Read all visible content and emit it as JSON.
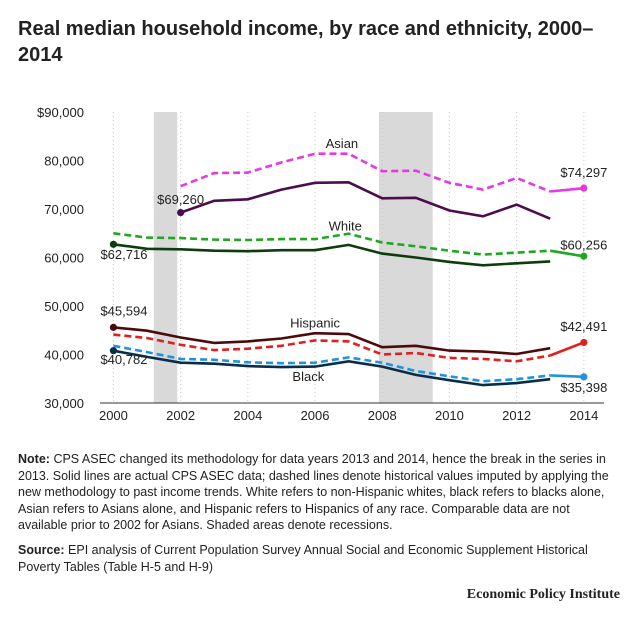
{
  "title": "Real median household income, by race and ethnicity, 2000–2014",
  "note": {
    "label": "Note:",
    "text": "CPS ASEC changed its methodology for data years 2013 and 2014, hence the break in the series in 2013. Solid lines are actual CPS ASEC data; dashed lines denote historical values imputed by applying the new methodology to past income trends. White refers to non-Hispanic whites, black refers to blacks alone, Asian refers to Asians alone, and Hispanic refers to Hispanics of any race. Comparable data are not available prior to 2002 for Asians. Shaded areas denote recessions."
  },
  "source": {
    "label": "Source:",
    "text": "EPI analysis of Current Population Survey Annual Social and Economic Supplement Historical Poverty Tables (Table H-5 and H-9)"
  },
  "footer": "Economic Policy Institute",
  "chart_data": {
    "type": "line",
    "title": "Real median household income, by race and ethnicity, 2000–2014",
    "xlabel": "",
    "ylabel": "",
    "xlim": [
      1999.6,
      2014.6
    ],
    "ylim": [
      30000,
      90000
    ],
    "x_ticks": [
      2000,
      2002,
      2004,
      2006,
      2008,
      2010,
      2012,
      2014
    ],
    "y_ticks": [
      30000,
      40000,
      50000,
      60000,
      70000,
      80000,
      90000
    ],
    "y_tick_labels": [
      "30,000",
      "40,000",
      "50,000",
      "60,000",
      "70,000",
      "80,000",
      "$90,000"
    ],
    "grid": "vertical dotted",
    "recessions": [
      [
        2001.2,
        2001.9
      ],
      [
        2007.9,
        2009.5
      ]
    ],
    "series": [
      {
        "name": "Asian",
        "color": "#4b0d4b",
        "solid": {
          "x": [
            2002,
            2003,
            2004,
            2005,
            2006,
            2007,
            2008,
            2009,
            2010,
            2011,
            2012,
            2013
          ],
          "y": [
            69260,
            71700,
            72000,
            74000,
            75400,
            75500,
            72200,
            72300,
            69700,
            68500,
            70900,
            68000
          ]
        },
        "dashed": {
          "x": [
            2002,
            2003,
            2004,
            2005,
            2006,
            2007,
            2008,
            2009,
            2010,
            2011,
            2012,
            2013,
            2014
          ],
          "y": [
            74700,
            77400,
            77500,
            79600,
            81400,
            81400,
            77800,
            77900,
            75400,
            74000,
            76400,
            73600,
            74297
          ]
        },
        "new_color": "#e638e6"
      },
      {
        "name": "White",
        "color": "#0c3d0c",
        "solid": {
          "x": [
            2000,
            2001,
            2002,
            2003,
            2004,
            2005,
            2006,
            2007,
            2008,
            2009,
            2010,
            2011,
            2012,
            2013
          ],
          "y": [
            62716,
            61800,
            61700,
            61400,
            61300,
            61500,
            61500,
            62600,
            60800,
            60000,
            59100,
            58400,
            58800,
            59200
          ]
        },
        "dashed": {
          "x": [
            2000,
            2001,
            2002,
            2003,
            2004,
            2005,
            2006,
            2007,
            2008,
            2009,
            2010,
            2011,
            2012,
            2013,
            2014
          ],
          "y": [
            65000,
            64100,
            64000,
            63700,
            63600,
            63800,
            63800,
            64900,
            63100,
            62300,
            61400,
            60600,
            61000,
            61400,
            60256
          ]
        },
        "new_color": "#21a621"
      },
      {
        "name": "Hispanic",
        "color": "#4d0a0a",
        "solid": {
          "x": [
            2000,
            2001,
            2002,
            2003,
            2004,
            2005,
            2006,
            2007,
            2008,
            2009,
            2010,
            2011,
            2012,
            2013
          ],
          "y": [
            45594,
            44900,
            43500,
            42400,
            42700,
            43300,
            44400,
            44200,
            41500,
            41800,
            40800,
            40600,
            40100,
            41300
          ]
        },
        "dashed": {
          "x": [
            2000,
            2001,
            2002,
            2003,
            2004,
            2005,
            2006,
            2007,
            2008,
            2009,
            2010,
            2011,
            2012,
            2013,
            2014
          ],
          "y": [
            44100,
            43400,
            42000,
            40900,
            41200,
            41800,
            42900,
            42700,
            40000,
            40300,
            39300,
            39100,
            38600,
            39800,
            42491
          ]
        },
        "new_color": "#e02020"
      },
      {
        "name": "Black",
        "color": "#0a2d4a",
        "solid": {
          "x": [
            2000,
            2001,
            2002,
            2003,
            2004,
            2005,
            2006,
            2007,
            2008,
            2009,
            2010,
            2011,
            2012,
            2013
          ],
          "y": [
            40782,
            39500,
            38300,
            38100,
            37600,
            37400,
            37500,
            38600,
            37500,
            35800,
            34700,
            33700,
            34100,
            34900
          ]
        },
        "dashed": {
          "x": [
            2000,
            2001,
            2002,
            2003,
            2004,
            2005,
            2006,
            2007,
            2008,
            2009,
            2010,
            2011,
            2012,
            2013,
            2014
          ],
          "y": [
            41800,
            40500,
            39100,
            38900,
            38400,
            38200,
            38300,
            39400,
            38300,
            36600,
            35500,
            34500,
            34900,
            35700,
            35398
          ]
        },
        "new_color": "#1f93e0"
      }
    ],
    "labels": [
      {
        "text": "Asian",
        "x": 2006.8,
        "y": 82600
      },
      {
        "text": "White",
        "x": 2006.9,
        "y": 65600
      },
      {
        "text": "Hispanic",
        "x": 2006.0,
        "y": 45600
      },
      {
        "text": "Black",
        "x": 2005.8,
        "y": 34500
      }
    ],
    "value_labels": [
      {
        "text": "$69,260",
        "x": 2002,
        "y": 71000,
        "anchor": "middle"
      },
      {
        "text": "$74,297",
        "x": 2014,
        "y": 76600,
        "anchor": "middle"
      },
      {
        "text": "$62,716",
        "x": 2000,
        "y": 59700,
        "anchor": "start"
      },
      {
        "text": "$60,256",
        "x": 2014,
        "y": 61700,
        "anchor": "middle"
      },
      {
        "text": "$45,594",
        "x": 2000,
        "y": 48000,
        "anchor": "start"
      },
      {
        "text": "$42,491",
        "x": 2014,
        "y": 44800,
        "anchor": "middle"
      },
      {
        "text": "$40,782",
        "x": 2000,
        "y": 38000,
        "anchor": "start"
      },
      {
        "text": "$35,398",
        "x": 2014,
        "y": 32300,
        "anchor": "middle"
      }
    ]
  }
}
